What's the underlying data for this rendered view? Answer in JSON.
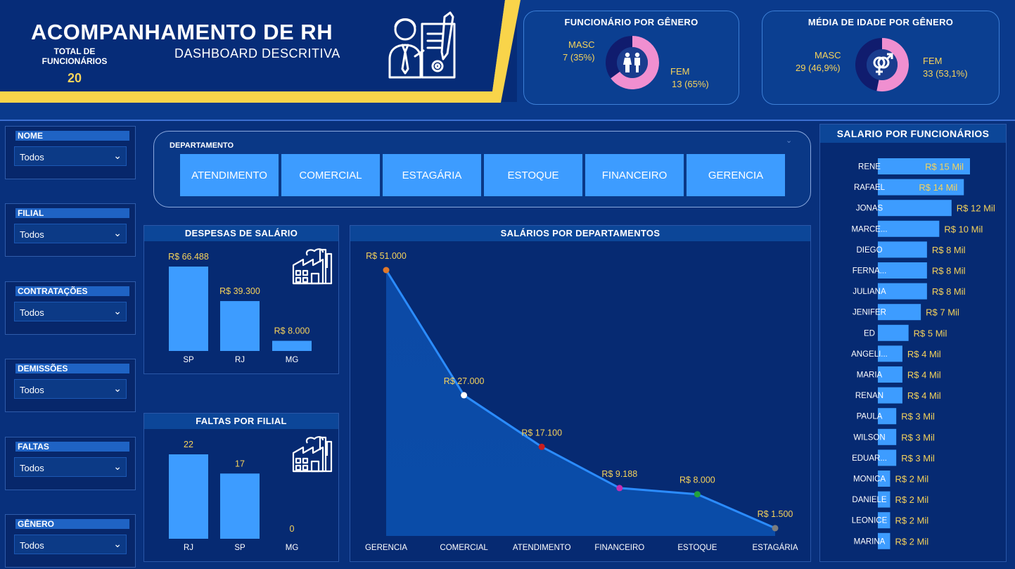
{
  "header": {
    "title": "ACOMPANHAMENTO DE RH",
    "subtitle": "DASHBOARD DESCRITIVA",
    "total_label": "TOTAL DE FUNCIONÁRIOS",
    "total_value": "20"
  },
  "gender_card": {
    "title": "FUNCIONÁRIO POR GÊNERO",
    "masc_label": "MASC",
    "masc_value": "7 (35%)",
    "fem_label": "FEM",
    "fem_value": "13 (65%)"
  },
  "age_card": {
    "title": "MÉDIA DE IDADE POR GÊNERO",
    "masc_label": "MASC",
    "masc_value": "29 (46,9%)",
    "fem_label": "FEM",
    "fem_value": "33 (53,1%)"
  },
  "filters": [
    {
      "label": "NOME",
      "value": "Todos"
    },
    {
      "label": "FILIAL",
      "value": "Todos"
    },
    {
      "label": "CONTRATAÇÕES",
      "value": "Todos"
    },
    {
      "label": "DEMISSÕES",
      "value": "Todos"
    },
    {
      "label": "FALTAS",
      "value": "Todos"
    },
    {
      "label": "GÊNERO",
      "value": "Todos"
    }
  ],
  "department_slicer": {
    "title": "DEPARTAMENTO",
    "options": [
      "ATENDIMENTO",
      "COMERCIAL",
      "ESTAGÁRIA",
      "ESTOQUE",
      "FINANCEIRO",
      "GERENCIA"
    ]
  },
  "colors": {
    "background": "#08307c",
    "bar": "#3d9cff",
    "gold_text": "#f6d35b",
    "fem_pink": "#f08fd0",
    "masc_navy": "#101c6e",
    "accent_yellow": "#f9d44a"
  },
  "icons": [
    "factory-icon",
    "hr-person-icon",
    "people-icon",
    "gender-symbol-icon",
    "chevron-down-icon"
  ],
  "chart_data": [
    {
      "type": "pie",
      "title": "FUNCIONÁRIO POR GÊNERO",
      "categories": [
        "MASC",
        "FEM"
      ],
      "values": [
        7,
        13
      ],
      "labels": [
        "7 (35%)",
        "13 (65%)"
      ]
    },
    {
      "type": "pie",
      "title": "MÉDIA DE IDADE POR GÊNERO",
      "categories": [
        "MASC",
        "FEM"
      ],
      "values": [
        29,
        33
      ],
      "labels": [
        "29 (46,9%)",
        "33 (53,1%)"
      ]
    },
    {
      "type": "bar",
      "title": "DESPESAS DE SALÁRIO",
      "categories": [
        "SP",
        "RJ",
        "MG"
      ],
      "values": [
        66488,
        39300,
        8000
      ],
      "labels": [
        "R$ 66.488",
        "R$ 39.300",
        "R$ 8.000"
      ],
      "ylim": [
        0,
        66488
      ]
    },
    {
      "type": "bar",
      "title": "FALTAS POR FILIAL",
      "categories": [
        "RJ",
        "SP",
        "MG"
      ],
      "values": [
        22,
        17,
        0
      ],
      "labels": [
        "22",
        "17",
        "0"
      ],
      "ylim": [
        0,
        22
      ]
    },
    {
      "type": "area",
      "title": "SALÁRIOS POR DEPARTAMENTOS",
      "categories": [
        "GERENCIA",
        "COMERCIAL",
        "ATENDIMENTO",
        "FINANCEIRO",
        "ESTOQUE",
        "ESTAGÁRIA"
      ],
      "values": [
        51000,
        27000,
        17100,
        9188,
        8000,
        1500
      ],
      "labels": [
        "R$ 51.000",
        "R$ 27.000",
        "R$ 17.100",
        "R$ 9.188",
        "R$ 8.000",
        "R$ 1.500"
      ],
      "point_colors": [
        "#e0782a",
        "#ffffff",
        "#c81e1e",
        "#c42db0",
        "#23a23a",
        "#7d7d7d"
      ],
      "ylim": [
        0,
        51000
      ]
    },
    {
      "type": "bar",
      "orientation": "horizontal",
      "title": "SALARIO POR FUNCIONÁRIOS",
      "categories": [
        "RENE",
        "RAFAEL",
        "JONAS",
        "MARCE...",
        "DIEGO",
        "FERNA...",
        "JULIANA",
        "JENIFER",
        "ED",
        "ANGELI...",
        "MARIA",
        "RENAN",
        "PAULA",
        "WILSON",
        "EDUAR...",
        "MONICA",
        "DANIELE",
        "LEONICE",
        "MARINA"
      ],
      "values": [
        15,
        14,
        12,
        10,
        8,
        8,
        8,
        7,
        5,
        4,
        4,
        4,
        3,
        3,
        3,
        2,
        2,
        2,
        2
      ],
      "labels": [
        "R$ 15 Mil",
        "R$ 14 Mil",
        "R$ 12 Mil",
        "R$ 10 Mil",
        "R$ 8 Mil",
        "R$ 8 Mil",
        "R$ 8 Mil",
        "R$ 7 Mil",
        "R$ 5 Mil",
        "R$ 4 Mil",
        "R$ 4 Mil",
        "R$ 4 Mil",
        "R$ 3 Mil",
        "R$ 3 Mil",
        "R$ 3 Mil",
        "R$ 2 Mil",
        "R$ 2 Mil",
        "R$ 2 Mil",
        "R$ 2 Mil"
      ],
      "xlim": [
        0,
        15
      ]
    }
  ]
}
